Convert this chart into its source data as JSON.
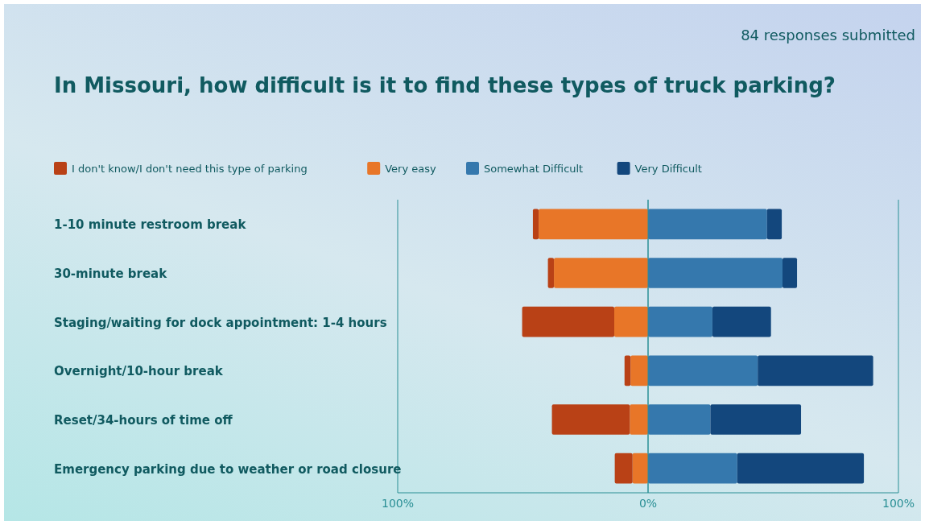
{
  "chart_data": {
    "type": "bar",
    "orientation": "horizontal",
    "stacked": true,
    "title": "In Missouri, how difficult is it to find these types of truck parking?",
    "annotations": [
      "84 responses submitted"
    ],
    "categories": [
      "1-10 minute restroom break",
      "30-minute break",
      "Staging/waiting for dock appointment: 1-4 hours",
      "Overnight/10-hour break",
      "Reset/34-hours of time off",
      "Emergency parking due to weather or road closure"
    ],
    "series": [
      {
        "name": "Very easy",
        "color": "#e87628",
        "values": [
          -43.7,
          -37.6,
          -13.5,
          -7.0,
          -7.3,
          -6.2
        ]
      },
      {
        "name": "I don't know/I don't need this type of parking",
        "color": "#b94116",
        "values": [
          -2.3,
          -2.4,
          -36.8,
          -2.4,
          -31.1,
          -7.1
        ]
      },
      {
        "name": "Somewhat Difficult",
        "color": "#3578ad",
        "values": [
          47.5,
          53.7,
          25.7,
          43.8,
          24.9,
          35.6
        ]
      },
      {
        "name": "Very Difficult",
        "color": "#13477d",
        "values": [
          5.9,
          5.8,
          23.4,
          46.1,
          36.2,
          50.6
        ]
      }
    ],
    "xlim": [
      -100,
      100
    ],
    "xticks": [
      {
        "value": -100,
        "label": "100%"
      },
      {
        "value": 0,
        "label": "0%"
      },
      {
        "value": 100,
        "label": "100%"
      }
    ],
    "grid": "x",
    "legend": "top left"
  }
}
